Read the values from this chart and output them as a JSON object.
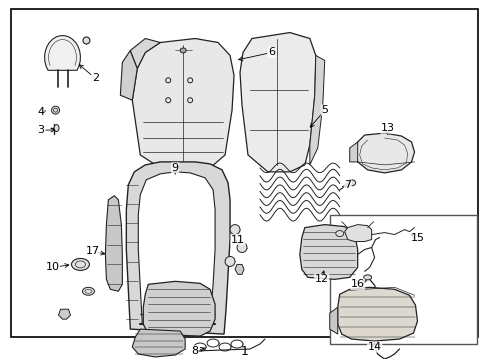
{
  "bg_color": "#ffffff",
  "border_color": "#000000",
  "text_color": "#000000",
  "fig_width": 4.89,
  "fig_height": 3.6,
  "dpi": 100,
  "lw_main": 0.8,
  "lw_thin": 0.5,
  "grey": "#222222"
}
